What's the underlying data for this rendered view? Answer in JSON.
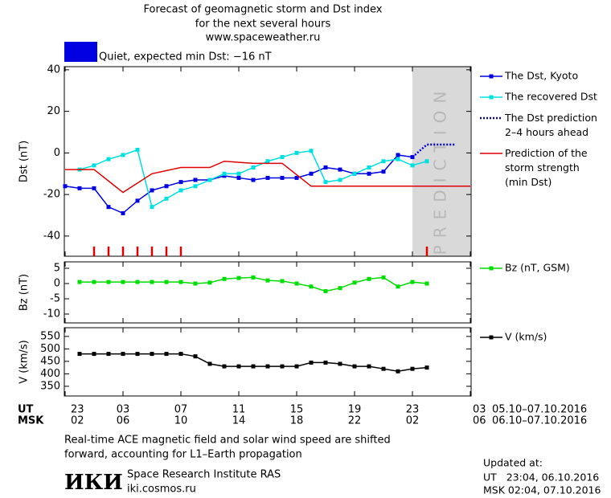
{
  "header": {
    "title_lines": [
      "Forecast of geomagnetic storm and Dst index",
      "for the next several hours",
      "www.spaceweather.ru"
    ],
    "status": {
      "color": "#0000e0",
      "text": "Quiet, expected min Dst: −16 nT"
    }
  },
  "time_axis": {
    "rows": [
      {
        "name": "UT",
        "range": "05.10–07.10.2016",
        "ticks": [
          {
            "value": 0,
            "label": "23"
          },
          {
            "value": 4,
            "label": "03"
          },
          {
            "value": 8,
            "label": "07"
          },
          {
            "value": 12,
            "label": "11"
          },
          {
            "value": 16,
            "label": "15"
          },
          {
            "value": 20,
            "label": "19"
          },
          {
            "value": 24,
            "label": "23"
          },
          {
            "value": 28,
            "label": "03"
          }
        ]
      },
      {
        "name": "MSK",
        "range": "06.10–07.10.2016",
        "ticks": [
          {
            "value": 0,
            "label": "02"
          },
          {
            "value": 4,
            "label": "06"
          },
          {
            "value": 8,
            "label": "10"
          },
          {
            "value": 12,
            "label": "14"
          },
          {
            "value": 16,
            "label": "18"
          },
          {
            "value": 20,
            "label": "22"
          },
          {
            "value": 24,
            "label": "02"
          },
          {
            "value": 28,
            "label": "06"
          }
        ]
      }
    ]
  },
  "chart_data": [
    {
      "type": "line",
      "y_label": "Dst (nT)",
      "xlim": [
        0,
        28
      ],
      "ylim": [
        -49.7,
        41.5
      ],
      "yticks": [
        -40,
        -20,
        0,
        20,
        40
      ],
      "prediction_region": {
        "range": [
          24,
          28
        ],
        "label": "PREDICTION",
        "color": "#d9d9d9"
      },
      "storm_markers": {
        "color": "#e00000",
        "x": [
          2,
          3,
          4,
          5,
          6,
          7,
          8,
          25
        ]
      },
      "series": [
        {
          "name": "The Dst, Kyoto",
          "color": "#0000e0",
          "style": "solid",
          "marker": true,
          "x": [
            0,
            1,
            2,
            3,
            4,
            5,
            6,
            7,
            8,
            9,
            10,
            11,
            12,
            13,
            14,
            15,
            16,
            17,
            18,
            19,
            20,
            21,
            22,
            23,
            24
          ],
          "values": [
            -16,
            -17,
            -17,
            -26,
            -29,
            -23,
            -18,
            -16,
            -14,
            -13,
            -13,
            -11,
            -12,
            -13,
            -12,
            -12,
            -12,
            -10,
            -7,
            -8,
            -10,
            -10,
            -9,
            -1,
            -2
          ]
        },
        {
          "name": "The recovered Dst",
          "color": "#00e0e0",
          "style": "solid",
          "marker": true,
          "x": [
            1,
            2,
            3,
            4,
            5,
            6,
            7,
            8,
            9,
            10,
            11,
            12,
            13,
            14,
            15,
            16,
            17,
            18,
            19,
            20,
            21,
            22,
            23,
            24,
            25
          ],
          "values": [
            -8,
            -6,
            -3,
            -1,
            1.5,
            -26,
            -22,
            -18,
            -16,
            -13,
            -10,
            -10,
            -7,
            -4,
            -2,
            0,
            1,
            -14,
            -13,
            -10,
            -7,
            -4,
            -3,
            -6,
            -4
          ]
        },
        {
          "name": "The Dst prediction\n2–4 hours ahead",
          "color": "#0000e0",
          "style": "dotted",
          "marker": false,
          "x": [
            24,
            25,
            26,
            27
          ],
          "values": [
            -2,
            4,
            4,
            4
          ]
        },
        {
          "name": "Prediction of the\nstorm strength\n(min Dst)",
          "color": "#e00000",
          "style": "solid",
          "marker": false,
          "x": [
            0,
            2,
            4,
            6,
            8,
            10,
            11,
            13,
            15,
            17,
            28
          ],
          "values": [
            -8,
            -8,
            -19,
            -10,
            -7,
            -7,
            -4,
            -5,
            -5,
            -16,
            -16
          ]
        }
      ]
    },
    {
      "type": "line",
      "y_label": "Bz (nT)",
      "xlim": [
        0,
        28
      ],
      "ylim": [
        -12.9,
        7.1
      ],
      "yticks": [
        -10,
        -5,
        0,
        5
      ],
      "series": [
        {
          "name": "Bz (nT, GSM)",
          "color": "#00dd00",
          "style": "solid",
          "marker": true,
          "x": [
            1,
            2,
            3,
            4,
            5,
            6,
            7,
            8,
            9,
            10,
            11,
            12,
            13,
            14,
            15,
            16,
            17,
            18,
            19,
            20,
            21,
            22,
            23,
            24,
            25
          ],
          "values": [
            0.5,
            0.5,
            0.5,
            0.5,
            0.5,
            0.5,
            0.5,
            0.5,
            0,
            0.3,
            1.5,
            1.8,
            2,
            1,
            0.8,
            0,
            -1,
            -2.5,
            -1.5,
            0.3,
            1.5,
            2,
            -1,
            0.5,
            0
          ]
        }
      ]
    },
    {
      "type": "line",
      "y_label": "V (km/s)",
      "xlim": [
        0,
        28
      ],
      "ylim": [
        311,
        585
      ],
      "yticks": [
        350,
        400,
        450,
        500,
        550
      ],
      "series": [
        {
          "name": "V (km/s)",
          "color": "#000000",
          "style": "solid",
          "marker": true,
          "x": [
            1,
            2,
            3,
            4,
            5,
            6,
            7,
            8,
            9,
            10,
            11,
            12,
            13,
            14,
            15,
            16,
            17,
            18,
            19,
            20,
            21,
            22,
            23,
            24,
            25
          ],
          "values": [
            480,
            480,
            480,
            480,
            480,
            480,
            480,
            480,
            470,
            440,
            430,
            430,
            430,
            430,
            430,
            430,
            445,
            445,
            440,
            430,
            430,
            420,
            410,
            420,
            425
          ]
        }
      ]
    }
  ],
  "footer": {
    "note_lines": [
      "Real-time ACE magnetic field and solar wind speed are shifted",
      "forward, accounting for L1–Earth propagation"
    ],
    "logo": "ИКИ",
    "institute": "Space Research Institute RAS",
    "site": "iki.cosmos.ru",
    "updated_title": "Updated at:",
    "updated_lines": [
      "UT   23:04, 06.10.2016",
      "MSK 02:04, 07.10.2016"
    ]
  }
}
